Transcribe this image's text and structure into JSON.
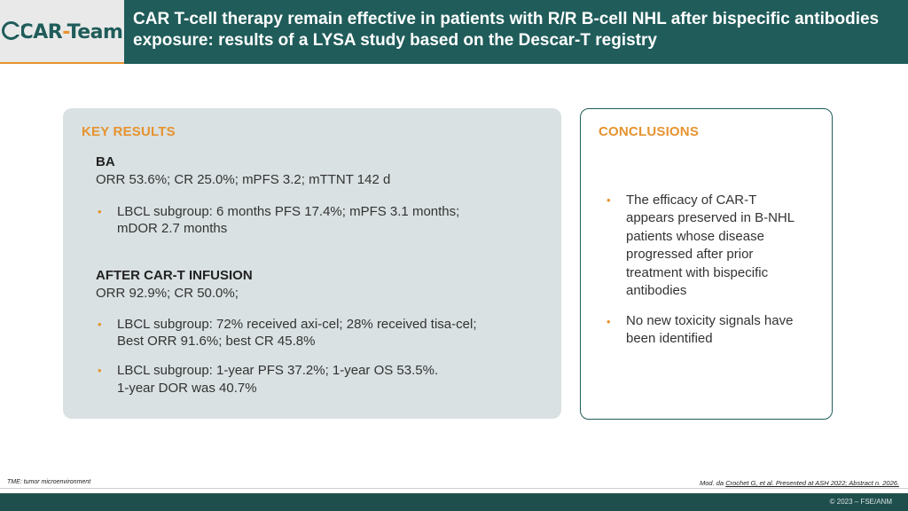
{
  "logo": {
    "part1": "CAR",
    "part2": "-",
    "part3": "Team"
  },
  "title": "CAR T-cell therapy remain effective in patients with R/R B-cell NHL after bispecific antibodies exposure: results of a LYSA study based on the Descar-T registry",
  "key_results": {
    "heading": "KEY RESULTS",
    "ba_heading": "BA",
    "ba_summary": "ORR 53.6%; CR 25.0%; mPFS 3.2; mTTNT 142 d",
    "ba_bullet_line1": "LBCL subgroup: 6 months PFS 17.4%; mPFS 3.1 months;",
    "ba_bullet_line2": "mDOR 2.7 months",
    "cart_heading": "AFTER CAR-T INFUSION",
    "cart_summary": "ORR 92.9%; CR 50.0%;",
    "cart_bullet1_line1": "LBCL subgroup: 72% received axi-cel; 28% received tisa-cel;",
    "cart_bullet1_line2": "Best ORR 91.6%; best CR 45.8%",
    "cart_bullet2_line1": "LBCL subgroup: 1-year PFS 37.2%; 1-year OS 53.5%.",
    "cart_bullet2_line2": "1-year DOR was 40.7%"
  },
  "conclusions": {
    "heading": "CONCLUSIONS",
    "bullet1_lines": [
      "The efficacy of CAR-T",
      "appears preserved in B-NHL",
      "patients whose disease",
      "progressed after prior",
      "treatment with bispecific",
      "antibodies"
    ],
    "bullet2_lines": [
      "No new toxicity signals have",
      "been identified"
    ]
  },
  "footnotes": {
    "left": "TME: tumor microenvironment",
    "right_prefix": "Mod. da ",
    "right_link": "Crochet G, et al. Presented at ASH 2022; Abstract n. 2026."
  },
  "copyright": "© 2023 – FSE/ANM",
  "bullet_glyph": "•",
  "colors": {
    "teal": "#1f5c5a",
    "orange": "#e6932f",
    "panel_bg": "#d9e1e2"
  }
}
